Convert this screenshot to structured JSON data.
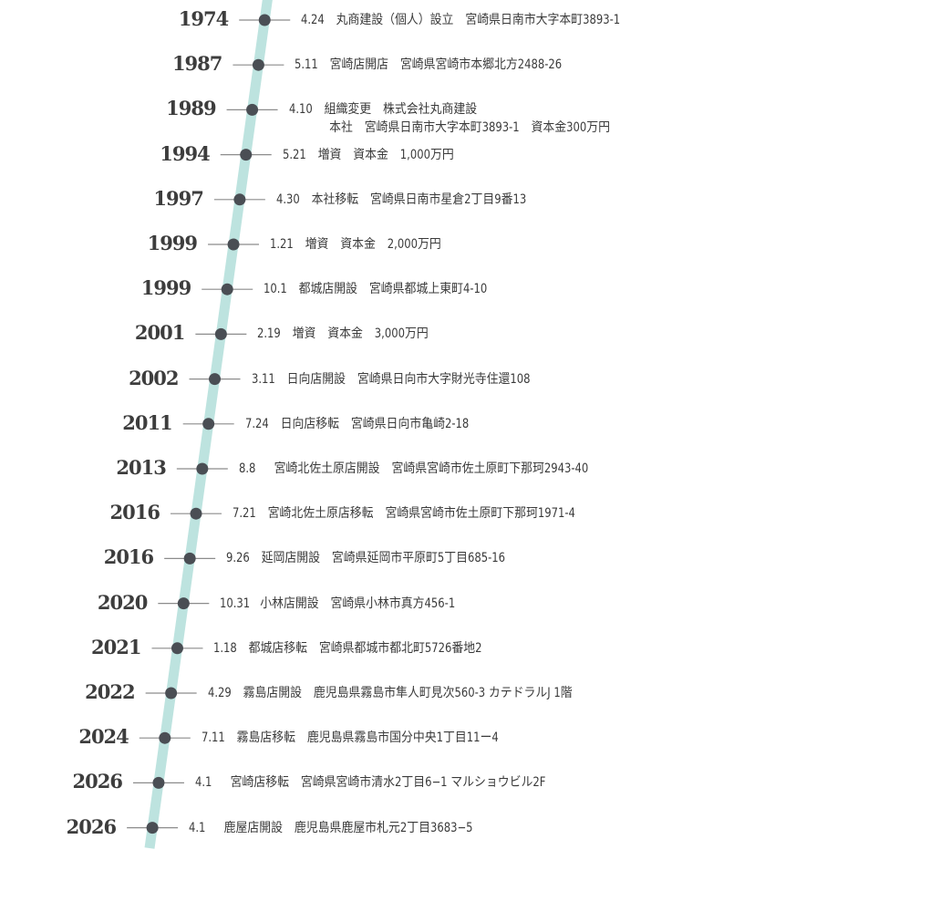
{
  "colors": {
    "timeline": "#bde3df",
    "dot": "#4a4e54",
    "tick": "#8c8c8c",
    "text": "#3a3a3a",
    "year": "#3d3d3d"
  },
  "entries": [
    {
      "year": "1974",
      "date": "4.24",
      "event": "丸商建設（個人）設立",
      "detail": "宮崎県日南市大字本町3893-1"
    },
    {
      "year": "1987",
      "date": "5.11",
      "event": "宮崎店開店",
      "detail": "宮崎県宮崎市本郷北方2488-26"
    },
    {
      "year": "1989",
      "date": "4.10",
      "event": "組織変更",
      "detail": "株式会社丸商建設",
      "detail2": "本社　宮崎県日南市大字本町3893-1　資本金300万円"
    },
    {
      "year": "1994",
      "date": "5.21",
      "event": "増資",
      "detail": "資本金　1,000万円"
    },
    {
      "year": "1997",
      "date": "4.30",
      "event": "本社移転",
      "detail": "宮崎県日南市星倉2丁目9番13"
    },
    {
      "year": "1999",
      "date": "1.21",
      "event": "増資",
      "detail": "資本金　2,000万円"
    },
    {
      "year": "1999",
      "date": "10.1",
      "event": "都城店開設",
      "detail": "宮崎県都城上東町4-10"
    },
    {
      "year": "2001",
      "date": "2.19",
      "event": "増資",
      "detail": "資本金　3,000万円"
    },
    {
      "year": "2002",
      "date": "3.11",
      "event": "日向店開設",
      "detail": "宮崎県日向市大字財光寺住還108"
    },
    {
      "year": "2011",
      "date": "7.24",
      "event": "日向店移転",
      "detail": "宮崎県日向市亀崎2-18"
    },
    {
      "year": "2013",
      "date": "8.8",
      "event": "宮崎北佐土原店開設",
      "detail": "宮崎県宮崎市佐土原町下那珂2943-40"
    },
    {
      "year": "2016",
      "date": "7.21",
      "event": "宮崎北佐土原店移転",
      "detail": "宮崎県宮崎市佐土原町下那珂1971-4"
    },
    {
      "year": "2016",
      "date": "9.26",
      "event": "延岡店開設",
      "detail": "宮崎県延岡市平原町5丁目685-16"
    },
    {
      "year": "2020",
      "date": "10.31",
      "event": "小林店開設",
      "detail": "宮崎県小林市真方456-1"
    },
    {
      "year": "2021",
      "date": "1.18",
      "event": "都城店移転",
      "detail": "宮崎県都城市都北町5726番地2"
    },
    {
      "year": "2022",
      "date": "4.29",
      "event": "霧島店開設",
      "detail": "鹿児島県霧島市隼人町見次560-3 カテドラルJ 1階"
    },
    {
      "year": "2024",
      "date": "7.11",
      "event": "霧島店移転",
      "detail": "鹿児島県霧島市国分中央1丁目11ー4"
    },
    {
      "year": "2026",
      "date": "4.1",
      "event": "宮崎店移転",
      "detail": "宮崎県宮崎市清水2丁目6−1 マルショウビル2F"
    },
    {
      "year": "2026",
      "date": "4.1",
      "event": "鹿屋店開設",
      "detail": "鹿児島県鹿屋市札元2丁目3683−5"
    }
  ]
}
